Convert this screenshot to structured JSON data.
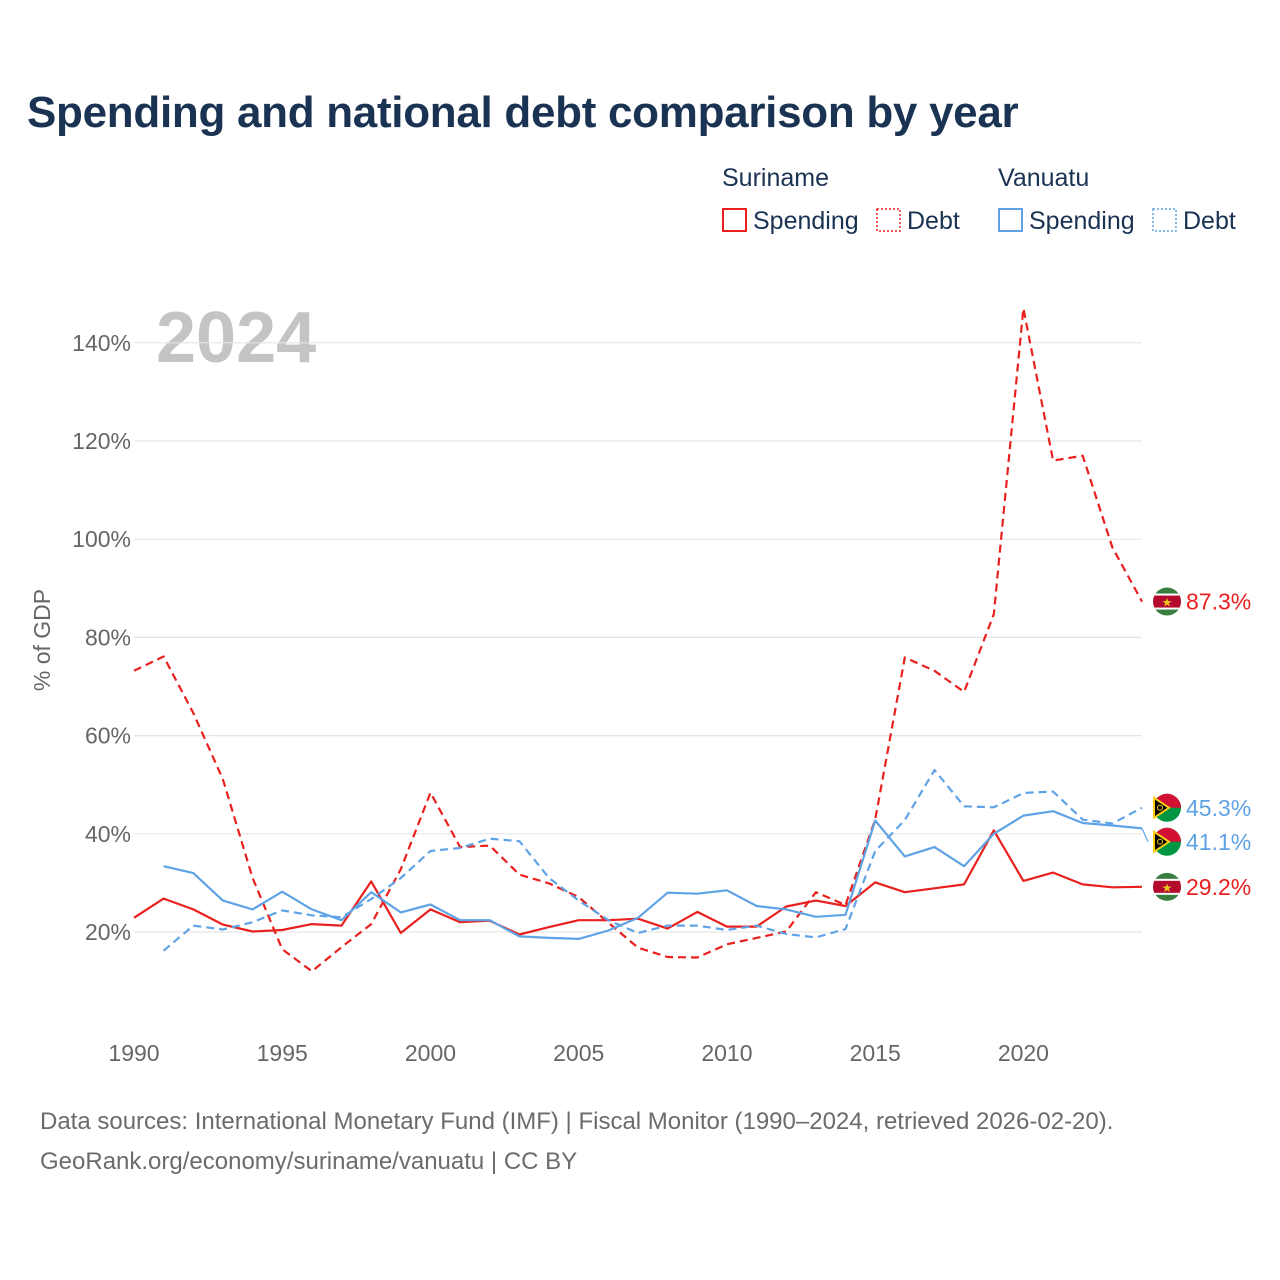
{
  "chart_data": {
    "type": "line",
    "title": "Spending and national debt comparison by year",
    "year_watermark": "2024",
    "ylabel": "% of GDP",
    "xlim": [
      1990,
      2024
    ],
    "ylim": [
      0,
      150
    ],
    "x_ticks": [
      1990,
      1995,
      2000,
      2005,
      2010,
      2015,
      2020
    ],
    "x_tick_labels": [
      "1990",
      "1995",
      "2000",
      "2005",
      "2010",
      "2015",
      "2020"
    ],
    "y_ticks": [
      20,
      40,
      60,
      80,
      100,
      120,
      140
    ],
    "y_tick_labels": [
      "20%",
      "40%",
      "60%",
      "80%",
      "100%",
      "120%",
      "140%"
    ],
    "grid": true,
    "x": [
      1990,
      1991,
      1992,
      1993,
      1994,
      1995,
      1996,
      1997,
      1998,
      1999,
      2000,
      2001,
      2002,
      2003,
      2004,
      2005,
      2006,
      2007,
      2008,
      2009,
      2010,
      2011,
      2012,
      2013,
      2014,
      2015,
      2016,
      2017,
      2018,
      2019,
      2020,
      2021,
      2022,
      2023,
      2024
    ],
    "legend": {
      "groups": [
        {
          "country": "Suriname",
          "items": [
            "Spending",
            "Debt"
          ]
        },
        {
          "country": "Vanuatu",
          "items": [
            "Spending",
            "Debt"
          ]
        }
      ]
    },
    "series": [
      {
        "name": "Suriname Spending",
        "country": "Suriname",
        "metric": "Spending",
        "color": "#e8201e",
        "dash": "solid",
        "end_label": "29.2%",
        "values": [
          22.9,
          26.8,
          24.6,
          21.5,
          20.1,
          20.4,
          21.6,
          21.3,
          30.3,
          19.8,
          24.6,
          22.0,
          22.3,
          19.5,
          21.0,
          22.4,
          22.4,
          22.7,
          20.7,
          24.1,
          21.1,
          21.1,
          25.2,
          26.4,
          25.3,
          30.1,
          28.1,
          28.9,
          29.7,
          40.7,
          30.4,
          32.1,
          29.7,
          29.1,
          29.2
        ]
      },
      {
        "name": "Suriname Debt",
        "country": "Suriname",
        "metric": "Debt",
        "color": "#e8201e",
        "dash": "dashed",
        "end_label": "87.3%",
        "values": [
          73.2,
          76.1,
          64.6,
          51.1,
          31.0,
          16.5,
          12.0,
          16.9,
          21.6,
          32.8,
          48.4,
          37.3,
          37.6,
          31.7,
          29.9,
          27.1,
          21.9,
          16.8,
          14.9,
          14.8,
          17.5,
          18.8,
          20.1,
          28.1,
          25.5,
          42.9,
          75.9,
          73.2,
          68.9,
          84.7,
          147.0,
          116.0,
          117.0,
          98.3,
          87.3
        ]
      },
      {
        "name": "Vanuatu Spending",
        "country": "Vanuatu",
        "metric": "Spending",
        "color": "#5fa3e6",
        "dash": "solid",
        "end_label": "41.1%",
        "values": [
          null,
          33.4,
          32.0,
          26.4,
          24.6,
          28.2,
          24.6,
          22.4,
          28.1,
          24.0,
          25.6,
          22.4,
          22.4,
          19.1,
          18.8,
          18.6,
          20.3,
          22.9,
          28.0,
          27.8,
          28.5,
          25.3,
          24.6,
          23.1,
          23.5,
          42.7,
          35.4,
          37.3,
          33.4,
          40.0,
          43.7,
          44.6,
          42.2,
          41.7,
          41.1
        ]
      },
      {
        "name": "Vanuatu Debt",
        "country": "Vanuatu",
        "metric": "Debt",
        "color": "#5fa3e6",
        "dash": "dashed",
        "end_label": "45.3%",
        "values": [
          null,
          16.2,
          21.3,
          20.5,
          22.0,
          24.4,
          23.4,
          23.0,
          26.7,
          31.0,
          36.5,
          37.1,
          39.0,
          38.5,
          31.0,
          26.4,
          22.4,
          19.8,
          21.3,
          21.3,
          20.4,
          21.3,
          19.6,
          18.9,
          20.6,
          36.5,
          42.8,
          53.0,
          45.6,
          45.4,
          48.3,
          48.6,
          42.9,
          42.1,
          45.3
        ]
      }
    ]
  },
  "source_line_1": "Data sources: International Monetary Fund (IMF) | Fiscal Monitor (1990–2024, retrieved 2026-02-20).",
  "source_line_2": "GeoRank.org/economy/suriname/vanuatu | CC BY",
  "colors": {
    "suriname": "#e8201e",
    "vanuatu": "#5fa3e6",
    "title": "#1b3353",
    "grid": "#e6e6e6",
    "watermark": "#c4c4c4"
  },
  "end_label_icons": {
    "Suriname": "suriname-flag-icon",
    "Vanuatu": "vanuatu-flag-icon"
  }
}
